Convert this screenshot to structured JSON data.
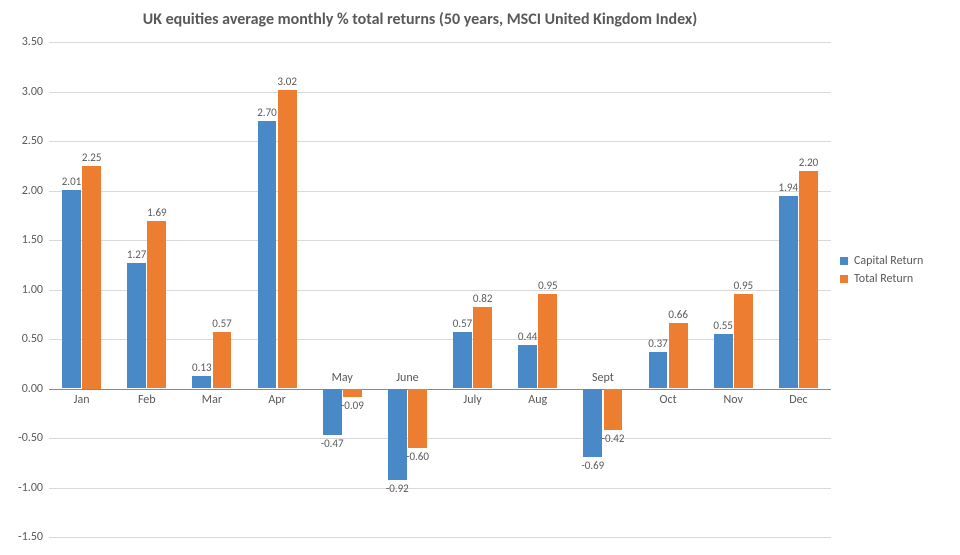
{
  "chart": {
    "type": "bar-grouped",
    "title": "UK equities average monthly % total returns (50 years, MSCI United Kingdom Index)",
    "title_fontsize": 16,
    "title_color": "#595959",
    "categories": [
      "Jan",
      "Feb",
      "Mar",
      "Apr",
      "May",
      "June",
      "July",
      "Aug",
      "Sept",
      "Oct",
      "Nov",
      "Dec"
    ],
    "series": [
      {
        "name": "Capital Return",
        "color": "#4a89c8",
        "values": [
          2.01,
          1.27,
          0.13,
          2.7,
          -0.47,
          -0.92,
          0.57,
          0.44,
          -0.69,
          0.37,
          0.55,
          1.94
        ]
      },
      {
        "name": "Total Return",
        "color": "#ed7d31",
        "values": [
          2.25,
          1.69,
          0.57,
          3.02,
          -0.09,
          -0.6,
          0.82,
          0.95,
          -0.42,
          0.66,
          0.95,
          2.2
        ]
      }
    ],
    "ylim": [
      -1.5,
      3.5
    ],
    "ytick_step": 0.5,
    "y_decimals": 2,
    "bar_group_width": 0.6,
    "bar_gap": 0.02,
    "axis_label_fontsize": 12,
    "value_label_fontsize": 11,
    "legend_fontsize": 12,
    "background_color": "#ffffff",
    "grid_color": "#d9d9d9",
    "axis_color": "#888888",
    "text_color": "#595959"
  }
}
